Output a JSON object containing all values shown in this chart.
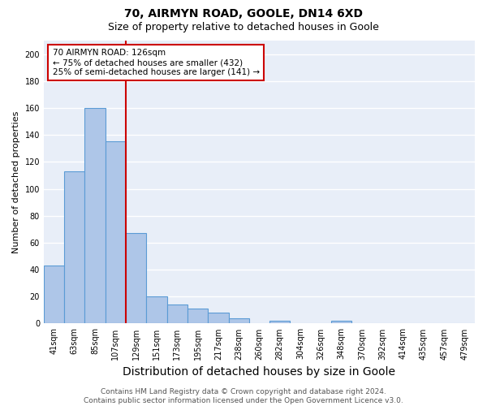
{
  "title": "70, AIRMYN ROAD, GOOLE, DN14 6XD",
  "subtitle": "Size of property relative to detached houses in Goole",
  "xlabel": "Distribution of detached houses by size in Goole",
  "ylabel": "Number of detached properties",
  "categories": [
    "41sqm",
    "63sqm",
    "85sqm",
    "107sqm",
    "129sqm",
    "151sqm",
    "173sqm",
    "195sqm",
    "217sqm",
    "238sqm",
    "260sqm",
    "282sqm",
    "304sqm",
    "326sqm",
    "348sqm",
    "370sqm",
    "392sqm",
    "414sqm",
    "435sqm",
    "457sqm",
    "479sqm"
  ],
  "values": [
    43,
    113,
    160,
    135,
    67,
    20,
    14,
    11,
    8,
    4,
    0,
    2,
    0,
    0,
    2,
    0,
    0,
    0,
    0,
    0,
    0
  ],
  "bar_color": "#aec6e8",
  "bar_edge_color": "#5b9bd5",
  "red_line_x": 3.5,
  "annotation_text": "70 AIRMYN ROAD: 126sqm\n← 75% of detached houses are smaller (432)\n25% of semi-detached houses are larger (141) →",
  "annotation_box_color": "#ffffff",
  "annotation_box_edge_color": "#cc0000",
  "ylim": [
    0,
    210
  ],
  "yticks": [
    0,
    20,
    40,
    60,
    80,
    100,
    120,
    140,
    160,
    180,
    200
  ],
  "background_color": "#e8eef8",
  "grid_color": "#ffffff",
  "footer_line1": "Contains HM Land Registry data © Crown copyright and database right 2024.",
  "footer_line2": "Contains public sector information licensed under the Open Government Licence v3.0.",
  "title_fontsize": 10,
  "subtitle_fontsize": 9,
  "xlabel_fontsize": 10,
  "ylabel_fontsize": 8,
  "tick_fontsize": 7,
  "footer_fontsize": 6.5,
  "annotation_fontsize": 7.5
}
